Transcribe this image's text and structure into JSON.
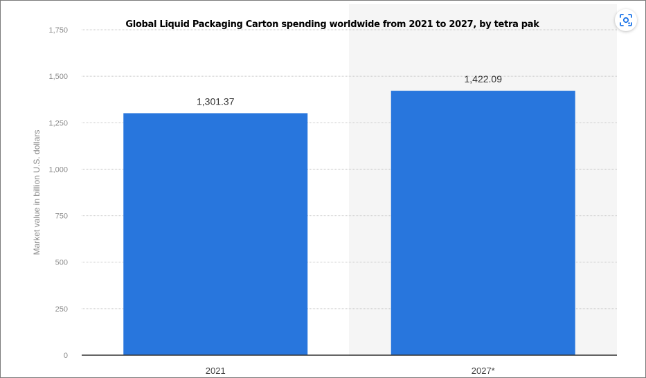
{
  "chart_data": {
    "type": "bar",
    "title": "Global Liquid Packaging Carton spending worldwide from 2021 to 2027, by tetra pak",
    "ylabel": "Market value in billion U.S. dollars",
    "xlabel": "",
    "categories": [
      "2021",
      "2027*"
    ],
    "values": [
      1301.37,
      1422.09
    ],
    "value_labels": [
      "1,301.37",
      "1,422.09"
    ],
    "ylim": [
      0,
      1750
    ],
    "yticks": [
      0,
      250,
      500,
      750,
      1000,
      1250,
      1500,
      1750
    ],
    "ytick_labels": [
      "0",
      "250",
      "500",
      "750",
      "1,000",
      "1,250",
      "1,500",
      "1,750"
    ],
    "bar_color": "#2876dd",
    "grid": true,
    "legend": "none"
  },
  "toolbar": {
    "lens_icon": "image-search-icon",
    "lens_color": "#1a73e8"
  }
}
